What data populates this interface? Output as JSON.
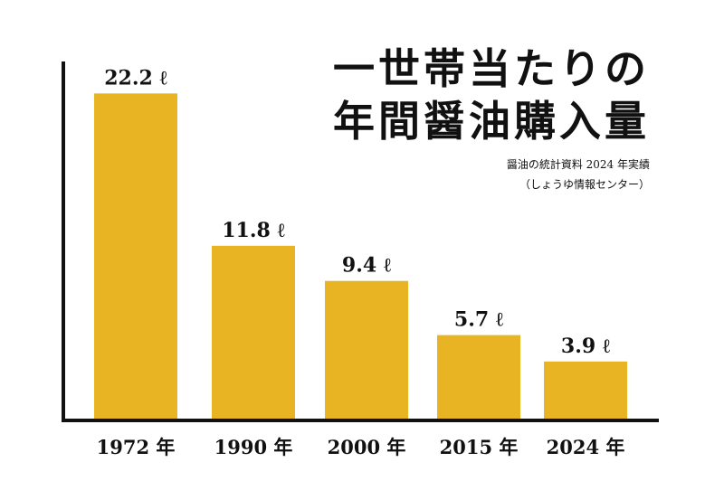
{
  "chart_data": {
    "type": "bar",
    "title": [
      "一世帯当たりの",
      "年間醤油購入量"
    ],
    "subtitle": [
      "醤油の統計資料 2024 年実績",
      "（しょうゆ情報センター）"
    ],
    "categories": [
      "1972 年",
      "1990 年",
      "2000 年",
      "2015 年",
      "2024 年"
    ],
    "values": [
      22.2,
      11.8,
      9.4,
      5.7,
      3.9
    ],
    "value_labels": [
      "22.2 ℓ",
      "11.8 ℓ",
      "9.4 ℓ",
      "5.7 ℓ",
      "3.9 ℓ"
    ],
    "color": "#e8b424"
  }
}
